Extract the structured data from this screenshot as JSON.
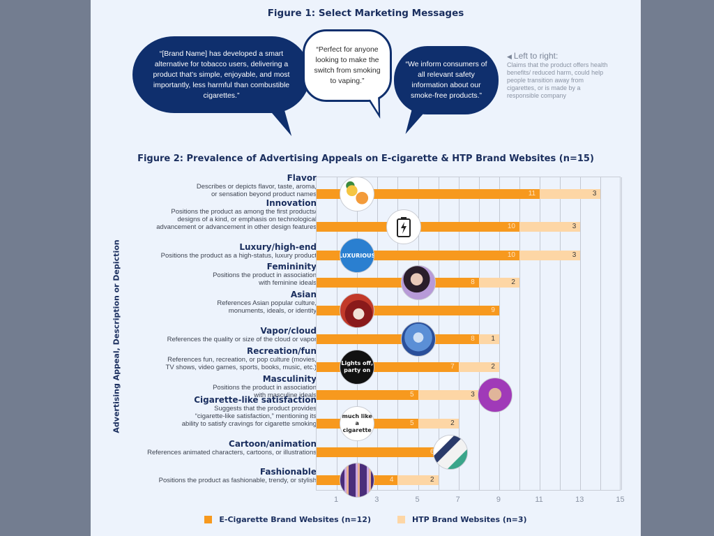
{
  "figure1": {
    "title": "Figure 1: Select Marketing Messages",
    "bubbles": [
      {
        "text": "“[Brand Name] has developed a smart alternative for tobacco users, delivering a product that’s simple, enjoyable, and most importantly, less harmful than combustible cigarettes.”",
        "style": "dark"
      },
      {
        "text": "“Perfect for anyone looking to make the switch from smoking to vaping.”",
        "style": "light"
      },
      {
        "text": "“We inform consumers of all relevant safety information about our smoke-free products.”",
        "style": "dark"
      }
    ],
    "note_heading": "Left to right:",
    "note_body": "Claims that the product offers health benefits/ reduced harm, could help people transition away from cigarettes, or is made by a responsible company"
  },
  "chart_data": {
    "type": "bar",
    "orientation": "horizontal",
    "stacked": true,
    "title": "Figure 2: Prevalence of Advertising Appeals on E-cigarette & HTP Brand Websites (n=15)",
    "ylabel": "Advertising Appeal, Description or Depiction",
    "xlabel": "",
    "xlim": [
      0,
      15
    ],
    "xticks": [
      1,
      3,
      5,
      7,
      9,
      11,
      13,
      15
    ],
    "grid": true,
    "legend_position": "bottom",
    "categories": [
      "Flavor",
      "Innovation",
      "Luxury/high-end",
      "Femininity",
      "Asian",
      "Vapor/cloud",
      "Recreation/fun",
      "Masculinity",
      "Cigarette-like satisfaction",
      "Cartoon/animation",
      "Fashionable"
    ],
    "series": [
      {
        "name": "E-Cigarette Brand Websites (n=12)",
        "color": "#f7991e",
        "values": [
          11,
          10,
          10,
          8,
          9,
          8,
          7,
          5,
          5,
          6,
          4
        ]
      },
      {
        "name": "HTP Brand Websites (n=3)",
        "color": "#fdd6a5",
        "values": [
          3,
          3,
          3,
          2,
          0,
          1,
          2,
          3,
          2,
          0,
          2
        ]
      }
    ]
  },
  "rows": [
    {
      "name": "Flavor",
      "desc": "Describes or depicts flavor, taste, aroma, or sensation beyond product names",
      "desc_lines": [
        "Describes or depicts flavor, taste, aroma,",
        "or sensation beyond product names"
      ],
      "e": 11,
      "h": 3,
      "e_label": "11",
      "h_label": "3",
      "thumb": "fruit-image"
    },
    {
      "name": "Innovation",
      "desc_lines": [
        "Positions the product as among the first products/",
        "designs of a kind, or emphasis on technological",
        "advancement or advancement in other design features"
      ],
      "e": 10,
      "h": 3,
      "e_label": "10",
      "h_label": "3",
      "thumb": "battery-icon"
    },
    {
      "name": "Luxury/high-end",
      "desc_lines": [
        "Positions the product as a high-status, luxury product"
      ],
      "e": 10,
      "h": 3,
      "e_label": "10",
      "h_label": "3",
      "thumb": "luxurious-badge",
      "thumb_text": "LUXURIOUS"
    },
    {
      "name": "Femininity",
      "desc_lines": [
        "Positions the product in association",
        "with feminine ideals"
      ],
      "e": 8,
      "h": 2,
      "e_label": "8",
      "h_label": "2",
      "thumb": "woman-photo"
    },
    {
      "name": "Asian",
      "desc_lines": [
        "References Asian popular culture,",
        "monuments, ideals, or identity"
      ],
      "e": 9,
      "h": 0,
      "e_label": "9",
      "h_label": "",
      "thumb": "asian-art-image"
    },
    {
      "name": "Vapor/cloud",
      "desc_lines": [
        "References the quality or size of the cloud or vapor"
      ],
      "e": 8,
      "h": 1,
      "e_label": "8",
      "h_label": "1",
      "thumb": "vapor-cloud-image"
    },
    {
      "name": "Recreation/fun",
      "desc_lines": [
        "References fun, recreation, or pop culture (movies,",
        "TV shows, video games, sports, books, music, etc.)"
      ],
      "e": 7,
      "h": 2,
      "e_label": "7",
      "h_label": "2",
      "thumb": "party-text-badge",
      "thumb_text": "Lights off, party on"
    },
    {
      "name": "Masculinity",
      "desc_lines": [
        "Positions the product in association",
        "with masculine ideals"
      ],
      "e": 5,
      "h": 3,
      "e_label": "5",
      "h_label": "3",
      "thumb": "man-photo"
    },
    {
      "name": "Cigarette-like satisfaction",
      "desc_lines": [
        "Suggests that the product provides",
        "“cigarette-like satisfaction,” mentioning its",
        "ability to satisfy cravings for cigarette smoking"
      ],
      "e": 5,
      "h": 2,
      "e_label": "5",
      "h_label": "2",
      "thumb": "cigarette-text-badge",
      "thumb_text": "much like a cigarette"
    },
    {
      "name": "Cartoon/animation",
      "desc_lines": [
        "References animated characters, cartoons, or illustrations"
      ],
      "e": 6,
      "h": 0,
      "e_label": "6",
      "h_label": "",
      "thumb": "cartoon-device-image"
    },
    {
      "name": "Fashionable",
      "desc_lines": [
        "Positions the product as fashionable, trendy, or stylish"
      ],
      "e": 4,
      "h": 2,
      "e_label": "4",
      "h_label": "2",
      "thumb": "vape-pens-image"
    }
  ],
  "legend": {
    "ecig_label": "E-Cigarette Brand Websites (n=12)",
    "htp_label": "HTP Brand Websites (n=3)"
  },
  "colors": {
    "ecig": "#f7991e",
    "htp": "#fdd6a5",
    "navy": "#0f2f6d",
    "title": "#1a2e5e",
    "panel": "#edf3fc",
    "backdrop": "#737d90"
  }
}
